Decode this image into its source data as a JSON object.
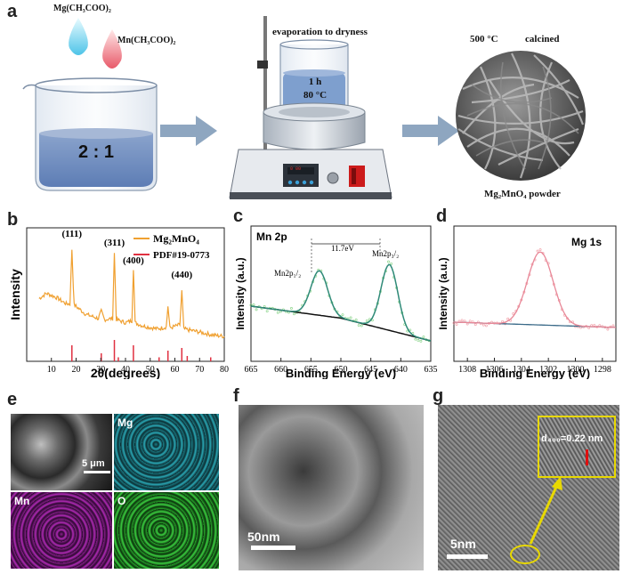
{
  "panel_a": {
    "label": "a",
    "reagent1": "Mg(CH₃COO)₂",
    "reagent2": "Mn(CH₃COO)₂",
    "ratio": "2 : 1",
    "evap_label": "evaporation to dryness",
    "time": "1 h",
    "temp": "80 °C",
    "display_top": "0 00",
    "display_bottom": "00 00",
    "calcine_temp": "500 °C",
    "calcine_label": "calcined",
    "product": "Mg₂MnO₄ powder"
  },
  "panel_e": {
    "label": "e",
    "scale": "5 μm",
    "maps": [
      "Mg",
      "Mn",
      "O"
    ]
  },
  "panel_f": {
    "label": "f",
    "scale": "50nm"
  },
  "panel_g": {
    "label": "g",
    "scale": "5nm",
    "inset_text": "d₄₀₀=0.22 nm"
  },
  "chart_data": [
    {
      "type": "line",
      "panel": "b",
      "xlabel": "2θ(degrees)",
      "ylabel": "Intensity",
      "xlim": [
        0,
        80
      ],
      "xticks": [
        "10",
        "20",
        "30",
        "40",
        "50",
        "60",
        "70",
        "80"
      ],
      "legend": [
        "Mg₂MnO₄",
        "PDF#19-0773"
      ],
      "legend_position": "top-right",
      "colors": {
        "pattern": "#f0a030",
        "reference": "#e03040"
      },
      "peaks": [
        {
          "x": 18.3,
          "label": "(111)"
        },
        {
          "x": 35.5,
          "label": "(311)"
        },
        {
          "x": 43.2,
          "label": "(400)"
        },
        {
          "x": 62.8,
          "label": "(440)"
        }
      ],
      "pattern_points": [
        [
          5,
          0.53
        ],
        [
          8,
          0.58
        ],
        [
          12,
          0.54
        ],
        [
          16,
          0.48
        ],
        [
          17.5,
          0.48
        ],
        [
          18.3,
          1.0
        ],
        [
          19.2,
          0.47
        ],
        [
          24,
          0.38
        ],
        [
          29,
          0.34
        ],
        [
          30.2,
          0.41
        ],
        [
          31.5,
          0.33
        ],
        [
          34.8,
          0.34
        ],
        [
          35.5,
          0.96
        ],
        [
          36.3,
          0.33
        ],
        [
          40,
          0.3
        ],
        [
          42.6,
          0.32
        ],
        [
          43.2,
          0.82
        ],
        [
          43.9,
          0.3
        ],
        [
          47,
          0.27
        ],
        [
          53,
          0.24
        ],
        [
          56.5,
          0.26
        ],
        [
          57.2,
          0.46
        ],
        [
          58,
          0.25
        ],
        [
          62,
          0.28
        ],
        [
          62.8,
          0.6
        ],
        [
          63.6,
          0.24
        ],
        [
          68,
          0.22
        ],
        [
          72,
          0.2
        ],
        [
          76,
          0.18
        ],
        [
          80,
          0.17
        ]
      ],
      "reference_lines": [
        [
          18.3,
          0.12
        ],
        [
          30.2,
          0.06
        ],
        [
          35.5,
          0.16
        ],
        [
          37.1,
          0.03
        ],
        [
          43.2,
          0.12
        ],
        [
          53.6,
          0.03
        ],
        [
          57.2,
          0.08
        ],
        [
          62.8,
          0.1
        ],
        [
          65,
          0.04
        ],
        [
          74.5,
          0.03
        ]
      ]
    },
    {
      "type": "line",
      "panel": "c",
      "title": "Mn 2p",
      "xlabel": "Binding Energy (eV)",
      "ylabel": "Intensity (a.u.)",
      "xlim": [
        665,
        635
      ],
      "xticks": [
        "665",
        "660",
        "655",
        "650",
        "645",
        "640",
        "635"
      ],
      "annotations": [
        "Mn2p₁/₂",
        "Mn2p₃/₂",
        "11.7eV"
      ],
      "peaks": [
        {
          "x": 653.6,
          "label": "Mn2p1/2"
        },
        {
          "x": 641.9,
          "label": "Mn2p3/2"
        }
      ],
      "colors": {
        "data": "#90d890",
        "fit": "#2f8a78",
        "background": "#111111"
      }
    },
    {
      "type": "line",
      "panel": "d",
      "title": "Mg 1s",
      "xlabel": "Binding Energy (eV)",
      "ylabel": "Intensity (a.u.)",
      "xlim": [
        1309,
        1297
      ],
      "xticks": [
        "1308",
        "1306",
        "1304",
        "1302",
        "1300",
        "1298"
      ],
      "peaks": [
        {
          "x": 1302.6
        }
      ],
      "colors": {
        "data": "#f4a0a8",
        "fit": "#e88898",
        "background": "#3a6a88"
      }
    }
  ]
}
